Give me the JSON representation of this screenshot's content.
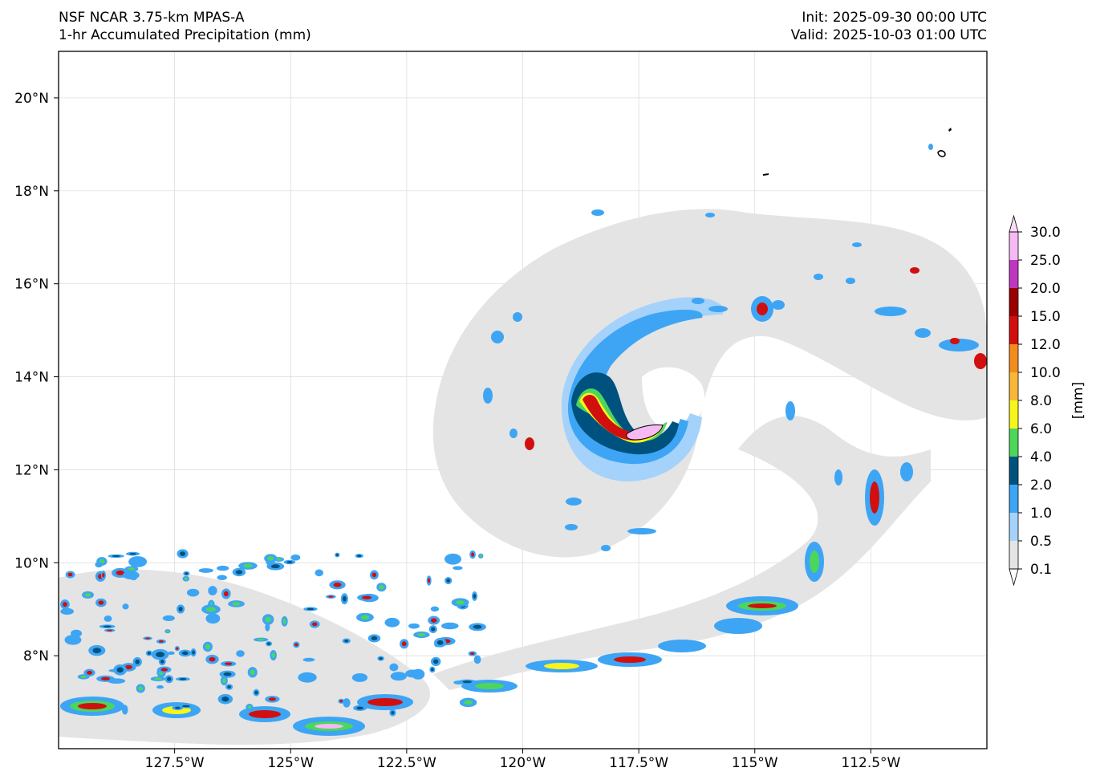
{
  "header": {
    "model": "NSF NCAR 3.75-km MPAS-A",
    "field": "1-hr Accumulated Precipitation (mm)",
    "init": "Init: 2025-09-30 00:00 UTC",
    "valid": "Valid: 2025-10-03 01:00 UTC"
  },
  "map": {
    "lon_range": [
      -130.0,
      -110.0
    ],
    "lat_range": [
      6.0,
      21.0
    ],
    "gridlines": true,
    "lon_ticks": [
      {
        "value": -127.5,
        "label": "127.5°W"
      },
      {
        "value": -125.0,
        "label": "125°W"
      },
      {
        "value": -122.5,
        "label": "122.5°W"
      },
      {
        "value": -120.0,
        "label": "120°W"
      },
      {
        "value": -117.5,
        "label": "117.5°W"
      },
      {
        "value": -115.0,
        "label": "115°W"
      },
      {
        "value": -112.5,
        "label": "112.5°W"
      }
    ],
    "lat_ticks": [
      {
        "value": 8,
        "label": "8°N"
      },
      {
        "value": 10,
        "label": "10°N"
      },
      {
        "value": 12,
        "label": "12°N"
      },
      {
        "value": 14,
        "label": "14°N"
      },
      {
        "value": 16,
        "label": "16°N"
      },
      {
        "value": 18,
        "label": "18°N"
      },
      {
        "value": 20,
        "label": "20°N"
      }
    ],
    "storm_center": {
      "lon": -117.6,
      "lat": 12.9
    }
  },
  "colorbar": {
    "unit_label": "[mm]",
    "levels": [
      {
        "label": "0.1",
        "color": "#e4e4e4"
      },
      {
        "label": "0.5",
        "color": "#a5d2fa"
      },
      {
        "label": "1.0",
        "color": "#3da5f4"
      },
      {
        "label": "2.0",
        "color": "#00527e"
      },
      {
        "label": "4.0",
        "color": "#4cd65c"
      },
      {
        "label": "6.0",
        "color": "#f7f51a"
      },
      {
        "label": "8.0",
        "color": "#f8b737"
      },
      {
        "label": "10.0",
        "color": "#f38b1d"
      },
      {
        "label": "12.0",
        "color": "#d10f0f"
      },
      {
        "label": "15.0",
        "color": "#990000"
      },
      {
        "label": "20.0",
        "color": "#be38bf"
      },
      {
        "label": "25.0",
        "color": "#f6b9f4"
      },
      {
        "label": "30.0",
        "color": ""
      }
    ],
    "over_color": "#fbdcf8",
    "under_color": "#ffffff"
  }
}
